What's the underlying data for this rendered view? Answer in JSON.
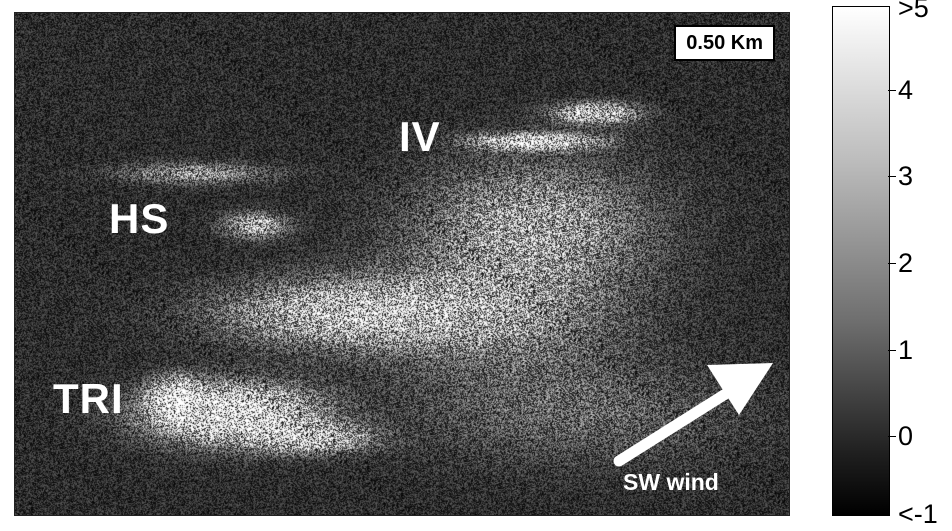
{
  "image": {
    "scale_label": "0.50 Km",
    "site_labels": {
      "iv": "IV",
      "hs": "HS",
      "tri": "TRI"
    },
    "wind_label": "SW wind",
    "arrow_icon": "wind-direction-arrow-icon"
  },
  "colorbar": {
    "top_label": ">5",
    "bottom_label": "<-1",
    "ticks": [
      "4",
      "3",
      "2",
      "1",
      "0"
    ],
    "colors": {
      "high": "#ffffff",
      "low": "#000000"
    }
  }
}
